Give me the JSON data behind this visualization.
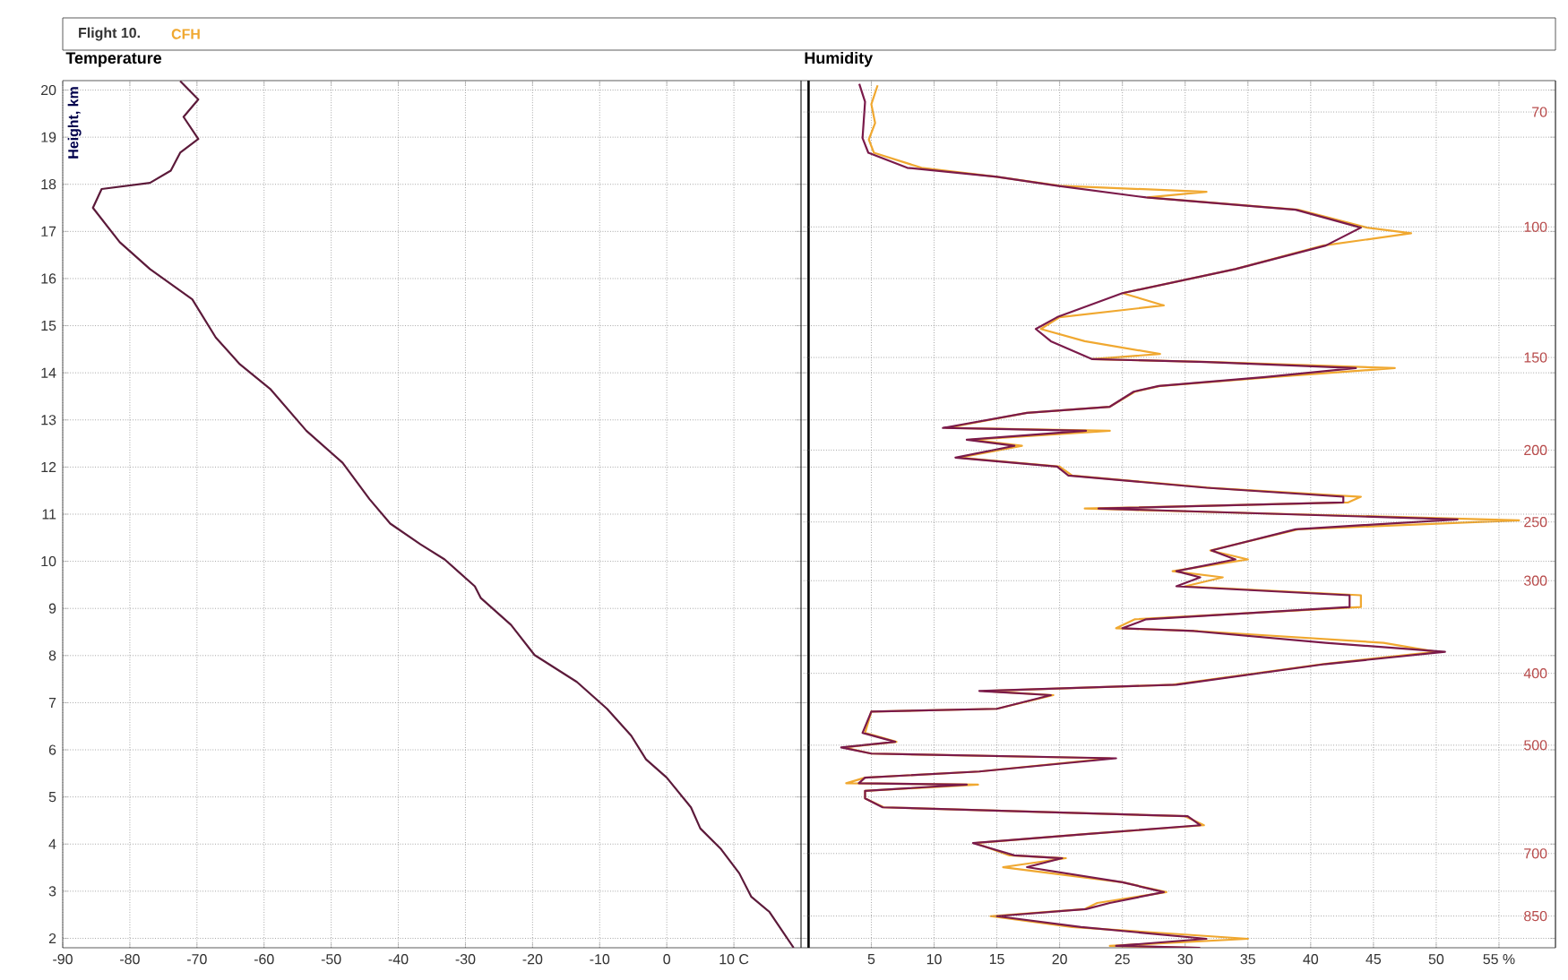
{
  "chart_data": [
    {
      "type": "line",
      "title": "Temperature",
      "ylabel": "Height, km",
      "annotations": [
        "Flight 10."
      ],
      "xlim": [
        -90,
        20
      ],
      "xticks": [
        -90,
        -80,
        -70,
        -60,
        -50,
        -40,
        -30,
        -20,
        -10,
        0,
        {
          "value": 10,
          "label": "10 C"
        }
      ],
      "ylim": [
        1.8,
        20.2
      ],
      "yticks": [
        2,
        3,
        4,
        5,
        6,
        7,
        8,
        9,
        10,
        11,
        12,
        13,
        14,
        15,
        16,
        17,
        18,
        19,
        20
      ],
      "grid": true,
      "series": [
        {
          "color": "#5c1a3a",
          "x": [
            -72.5,
            -69.8,
            -72,
            -69.8,
            -72.5,
            -73.9,
            -77,
            -84.2,
            -85.5,
            -81.5,
            -77,
            -70.7,
            -67.2,
            -63.6,
            -59.1,
            -53.7,
            -48.3,
            -44.3,
            -41.2,
            -36.7,
            -33.1,
            -28.6,
            -27.7,
            -23.2,
            -19.7,
            -13.4,
            -8.9,
            -5.3,
            -3.1,
            0,
            3.6,
            5,
            8.1,
            10.8,
            12.6,
            15.3,
            18.9
          ],
          "values": [
            20.19,
            19.8,
            19.43,
            18.96,
            18.67,
            18.29,
            18.03,
            17.9,
            17.5,
            16.77,
            16.2,
            15.56,
            14.75,
            14.18,
            13.66,
            12.77,
            12.09,
            11.32,
            10.8,
            10.36,
            10.04,
            9.47,
            9.22,
            8.65,
            8.01,
            7.44,
            6.87,
            6.3,
            5.8,
            5.41,
            4.78,
            4.33,
            3.89,
            3.38,
            2.88,
            2.56,
            1.8
          ]
        }
      ]
    },
    {
      "type": "line",
      "title": "Humidity",
      "legend": "top",
      "tick_labels": "xy2",
      "xlim": [
        -0.6,
        59.5
      ],
      "xticks": [
        5,
        10,
        15,
        20,
        25,
        30,
        35,
        40,
        45,
        50,
        {
          "value": 55,
          "label": "55 %"
        }
      ],
      "ylim": [
        1.8,
        20.2
      ],
      "grid": true,
      "log": "y2",
      "y2lim": [
        938,
        63.5
      ],
      "y2ticks": [
        70,
        100,
        150,
        200,
        250,
        300,
        400,
        500,
        700,
        850
      ],
      "ref_lines": [
        {
          "axis": "x",
          "value": 0,
          "color": "#000000"
        }
      ],
      "series": [
        {
          "name": "CFH",
          "color": "#f0a830",
          "x": [
            5.5,
            5.0,
            5.3,
            4.8,
            5.2,
            9,
            15,
            20,
            31.7,
            27,
            39,
            44.5,
            48,
            41,
            34,
            25,
            28.3,
            20,
            18.5,
            22,
            28,
            22.6,
            32,
            46.7,
            37,
            28,
            26,
            24,
            17.4,
            11,
            24,
            13,
            17,
            12,
            20,
            21,
            32,
            44,
            43,
            22,
            56.6,
            39,
            32,
            35,
            29,
            33,
            30,
            44,
            44,
            26,
            24.5,
            31,
            45.8,
            50,
            41,
            29,
            14,
            19.5,
            15,
            5,
            4.5,
            7,
            2.8,
            5,
            24,
            13.6,
            4.5,
            3,
            13.5,
            4.5,
            4.5,
            6,
            30,
            31.5,
            22,
            13.3,
            16,
            20.5,
            15.5,
            25,
            28.5,
            23,
            22,
            14.5,
            21,
            35,
            24,
            31
          ],
          "values": [
            20.1,
            19.7,
            19.3,
            18.95,
            18.67,
            18.35,
            18.16,
            17.97,
            17.84,
            17.72,
            17.46,
            17.08,
            16.96,
            16.7,
            16.2,
            15.69,
            15.43,
            15.18,
            14.93,
            14.67,
            14.4,
            14.29,
            14.23,
            14.1,
            13.91,
            13.72,
            13.6,
            13.28,
            13.15,
            12.83,
            12.77,
            12.58,
            12.45,
            12.2,
            12.01,
            11.82,
            11.56,
            11.37,
            11.25,
            11.12,
            10.87,
            10.68,
            10.23,
            10.04,
            9.79,
            9.66,
            9.47,
            9.28,
            9.03,
            8.77,
            8.58,
            8.52,
            8.27,
            8.08,
            7.82,
            7.38,
            7.25,
            7.16,
            6.87,
            6.81,
            6.36,
            6.17,
            6.05,
            5.92,
            5.82,
            5.54,
            5.41,
            5.29,
            5.26,
            5.13,
            4.97,
            4.78,
            4.59,
            4.4,
            4.21,
            4.02,
            3.76,
            3.7,
            3.51,
            3.19,
            2.98,
            2.75,
            2.62,
            2.47,
            2.24,
            1.99,
            1.84,
            1.8
          ]
        },
        {
          "color": "#7a1a4a",
          "x": [
            4.04,
            4.5,
            4.3,
            4.76,
            7.86,
            15,
            19.8,
            26.9,
            38.8,
            44,
            41.2,
            34,
            25,
            19.8,
            18.1,
            19.3,
            22.6,
            31.7,
            43.6,
            36.4,
            27.9,
            25.9,
            24,
            17.4,
            10.7,
            22.1,
            12.6,
            16.4,
            11.7,
            19.8,
            20.7,
            31.7,
            42.6,
            42.6,
            23.1,
            51.7,
            38.8,
            32.1,
            34,
            29.3,
            31.2,
            29.3,
            43.1,
            43.1,
            26.9,
            25,
            30.7,
            41.2,
            50.7,
            41.2,
            29.3,
            13.6,
            19.3,
            15,
            5,
            4.3,
            6.9,
            2.6,
            5,
            24.5,
            13.6,
            4.5,
            4.0,
            12.6,
            4.5,
            4.5,
            5.9,
            30.2,
            31.2,
            22.1,
            13.1,
            16.4,
            20.2,
            17.4,
            25,
            28.3,
            24,
            22.1,
            15,
            21.7,
            31.7,
            24.5,
            31.2
          ],
          "values": [
            20.13,
            19.75,
            18.98,
            18.67,
            18.35,
            18.16,
            17.97,
            17.72,
            17.46,
            17.08,
            16.7,
            16.2,
            15.69,
            15.18,
            14.93,
            14.67,
            14.29,
            14.23,
            14.1,
            13.91,
            13.72,
            13.6,
            13.28,
            13.15,
            12.83,
            12.77,
            12.58,
            12.45,
            12.2,
            12.01,
            11.82,
            11.56,
            11.37,
            11.25,
            11.12,
            10.89,
            10.68,
            10.23,
            10.04,
            9.79,
            9.66,
            9.47,
            9.28,
            9.03,
            8.77,
            8.58,
            8.52,
            8.27,
            8.08,
            7.82,
            7.38,
            7.25,
            7.16,
            6.87,
            6.81,
            6.36,
            6.17,
            6.05,
            5.92,
            5.82,
            5.54,
            5.41,
            5.29,
            5.26,
            5.13,
            4.97,
            4.78,
            4.59,
            4.4,
            4.21,
            4.02,
            3.76,
            3.7,
            3.51,
            3.19,
            2.98,
            2.75,
            2.62,
            2.47,
            2.24,
            1.99,
            1.84,
            1.8
          ]
        }
      ]
    }
  ]
}
